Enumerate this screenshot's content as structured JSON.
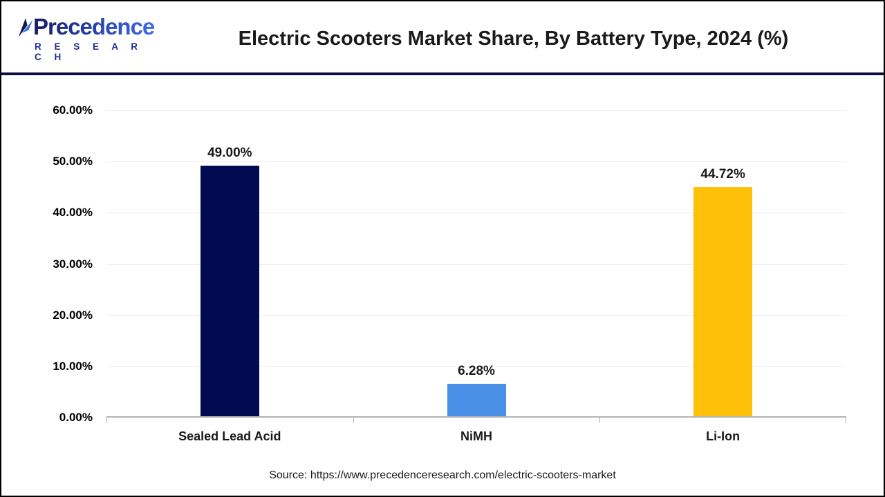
{
  "header": {
    "logo_line1": "Precedence",
    "logo_line2": "R E S E A R C H",
    "title": "Electric Scooters Market Share, By Battery Type, 2024 (%)"
  },
  "chart_data": {
    "type": "bar",
    "title": "Electric Scooters Market Share, By Battery Type, 2024 (%)",
    "categories": [
      "Sealed Lead Acid",
      "NiMH",
      "Li-Ion"
    ],
    "values": [
      49.0,
      6.28,
      44.72
    ],
    "value_labels": [
      "49.00%",
      "6.28%",
      "44.72%"
    ],
    "bar_colors": [
      "#020b52",
      "#4a90e8",
      "#fec107"
    ],
    "xlabel": "",
    "ylabel": "",
    "ylim": [
      0,
      60
    ],
    "ytick_step": 10,
    "ytick_labels": [
      "0.00%",
      "10.00%",
      "20.00%",
      "30.00%",
      "40.00%",
      "50.00%",
      "60.00%"
    ],
    "grid": true,
    "legend": false,
    "colors": {
      "grid": "#e8e8e8",
      "axis": "#b3b3b3",
      "label_text": "#1a1a1a"
    }
  },
  "footer": {
    "source": "Source: https://www.precedenceresearch.com/electric-scooters-market"
  }
}
